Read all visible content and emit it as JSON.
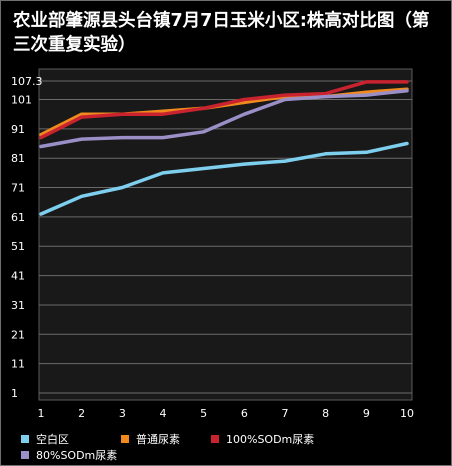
{
  "chart_data": {
    "type": "line",
    "title": "农业部肇源县头台镇7月7日玉米小区:株高对比图（第三次重复实验）",
    "xlabel": "",
    "ylabel": "",
    "x": [
      1,
      2,
      3,
      4,
      5,
      6,
      7,
      8,
      9,
      10
    ],
    "y_ticks": [
      1,
      11,
      21,
      31,
      41,
      51,
      61,
      71,
      81,
      91,
      101,
      107.3
    ],
    "ylim": [
      1,
      107.3
    ],
    "grid": "horizontal",
    "legend_position": "bottom",
    "series": [
      {
        "name": "空白区",
        "color": "#7ecfee",
        "values": [
          62,
          68,
          71,
          76,
          77.5,
          79,
          80,
          82.5,
          83,
          86
        ]
      },
      {
        "name": "普通尿素",
        "color": "#f08a1e",
        "values": [
          89,
          96,
          96,
          97,
          98,
          100,
          102,
          102,
          103.5,
          104.5
        ]
      },
      {
        "name": "100%SODm尿素",
        "color": "#c8232e",
        "values": [
          88,
          95,
          96,
          96,
          98,
          101,
          102.5,
          103,
          107,
          107
        ]
      },
      {
        "name": "80%SODm尿素",
        "color": "#9b8fc7",
        "values": [
          85,
          87.5,
          88,
          88,
          90,
          96,
          101,
          102,
          102.5,
          104
        ]
      }
    ]
  }
}
